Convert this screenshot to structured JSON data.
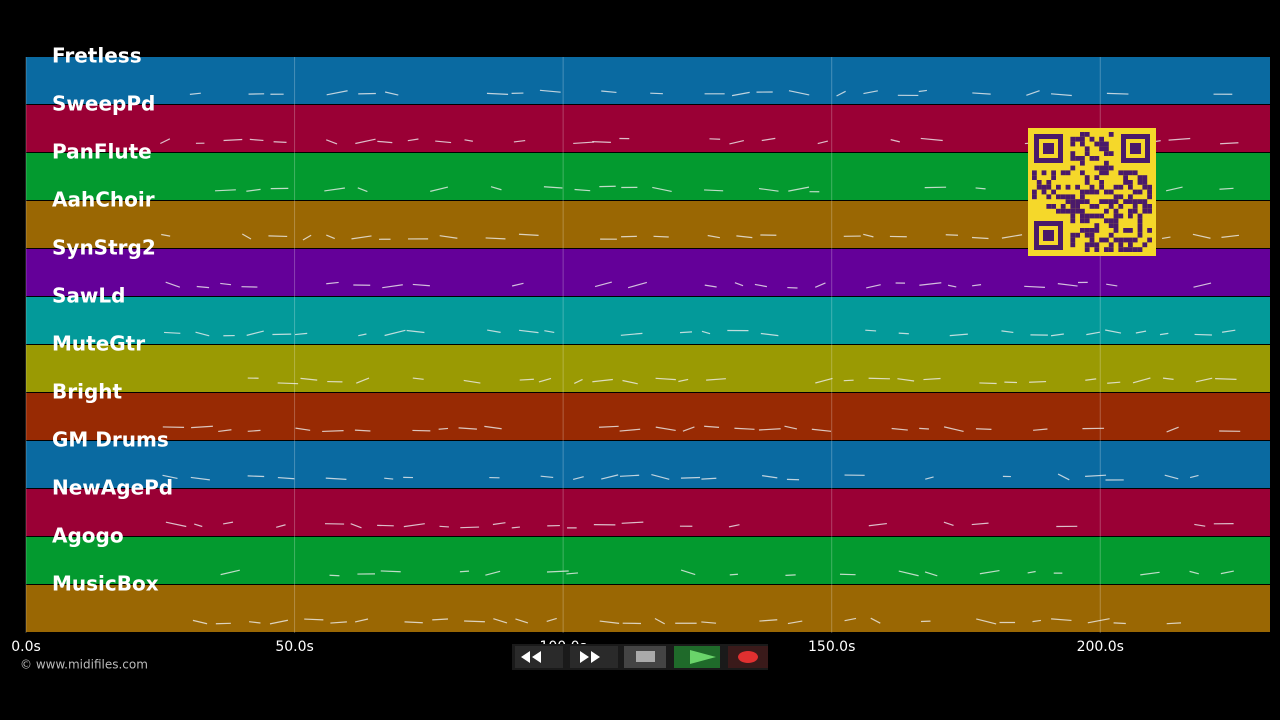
{
  "tracks": [
    {
      "name": "Fretless",
      "color": "#0a6aa1"
    },
    {
      "name": "SweepPd",
      "color": "#9a0035"
    },
    {
      "name": "PanFlute",
      "color": "#039a2f"
    },
    {
      "name": "AahChoir",
      "color": "#9a6703"
    },
    {
      "name": "SynStrg2",
      "color": "#640099"
    },
    {
      "name": "SawLd",
      "color": "#039a9a"
    },
    {
      "name": "MuteGtr",
      "color": "#9a9a03"
    },
    {
      "name": "Bright",
      "color": "#982a03"
    },
    {
      "name": "GM Drums",
      "color": "#0a6aa1"
    },
    {
      "name": "NewAgePd",
      "color": "#9a0035"
    },
    {
      "name": "Agogo",
      "color": "#039a2f"
    },
    {
      "name": "MusicBox",
      "color": "#9a6703"
    }
  ],
  "timeline": {
    "xlim": [
      0,
      231.6
    ],
    "ticks": [
      {
        "value": 0,
        "label": "0.0s"
      },
      {
        "value": 50,
        "label": "50.0s"
      },
      {
        "value": 100,
        "label": "100.0s"
      },
      {
        "value": 150,
        "label": "150.0s"
      },
      {
        "value": 200,
        "label": "200.0s"
      }
    ]
  },
  "copyright": "© www.midifiles.com"
}
